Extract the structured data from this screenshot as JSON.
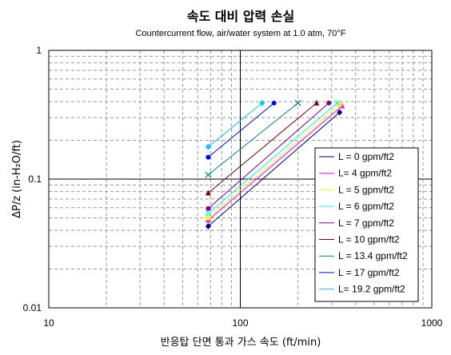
{
  "chart_data": {
    "type": "line",
    "title": "속도 대비 압력 손실",
    "subtitle": "Countercurrent flow, air/water system at 1.0 atm, 70°F",
    "xlabel": "반응탑 단면 통과 가스 속도 (ft/min)",
    "ylabel": "ΔP/z (in-H₂O/ft)",
    "x_scale": "log",
    "y_scale": "log",
    "xlim": [
      10,
      1000
    ],
    "ylim": [
      0.01,
      1
    ],
    "x_ticks": [
      "10",
      "100",
      "1000"
    ],
    "y_ticks": [
      "0.01",
      "0.1",
      "1"
    ],
    "grid": true,
    "legend_position": "right",
    "series": [
      {
        "name": "L = 0 gpm/ft2",
        "color": "#000080",
        "marker": "diamond",
        "x": [
          68,
          330
        ],
        "y": [
          0.043,
          0.33
        ]
      },
      {
        "name": "L= 4 gpm/ft2",
        "color": "#FF00FF",
        "marker": "triangle",
        "x": [
          68,
          340
        ],
        "y": [
          0.048,
          0.37
        ]
      },
      {
        "name": "L = 5 gpm/ft2",
        "color": "#FFFF00",
        "marker": "square",
        "x": [
          68,
          330
        ],
        "y": [
          0.05,
          0.38
        ]
      },
      {
        "name": "L = 6 gpm/ft2",
        "color": "#00FFFF",
        "marker": "x",
        "x": [
          68,
          320
        ],
        "y": [
          0.054,
          0.39
        ]
      },
      {
        "name": "L = 7 gpm/ft2",
        "color": "#800080",
        "marker": "circle",
        "x": [
          68,
          290
        ],
        "y": [
          0.059,
          0.39
        ]
      },
      {
        "name": "L = 10 gpm/ft2",
        "color": "#800000",
        "marker": "triangle",
        "x": [
          68,
          250
        ],
        "y": [
          0.078,
          0.39
        ]
      },
      {
        "name": "L = 13.4 gpm/ft2",
        "color": "#008080",
        "marker": "x",
        "x": [
          68,
          200
        ],
        "y": [
          0.108,
          0.39
        ]
      },
      {
        "name": "L = 17 gpm/ft2",
        "color": "#0000FF",
        "marker": "circle",
        "x": [
          68,
          150
        ],
        "y": [
          0.148,
          0.39
        ]
      },
      {
        "name": "L= 19.2 gpm/ft2",
        "color": "#00CCFF",
        "marker": "diamond",
        "x": [
          68,
          130
        ],
        "y": [
          0.178,
          0.39
        ]
      }
    ]
  }
}
